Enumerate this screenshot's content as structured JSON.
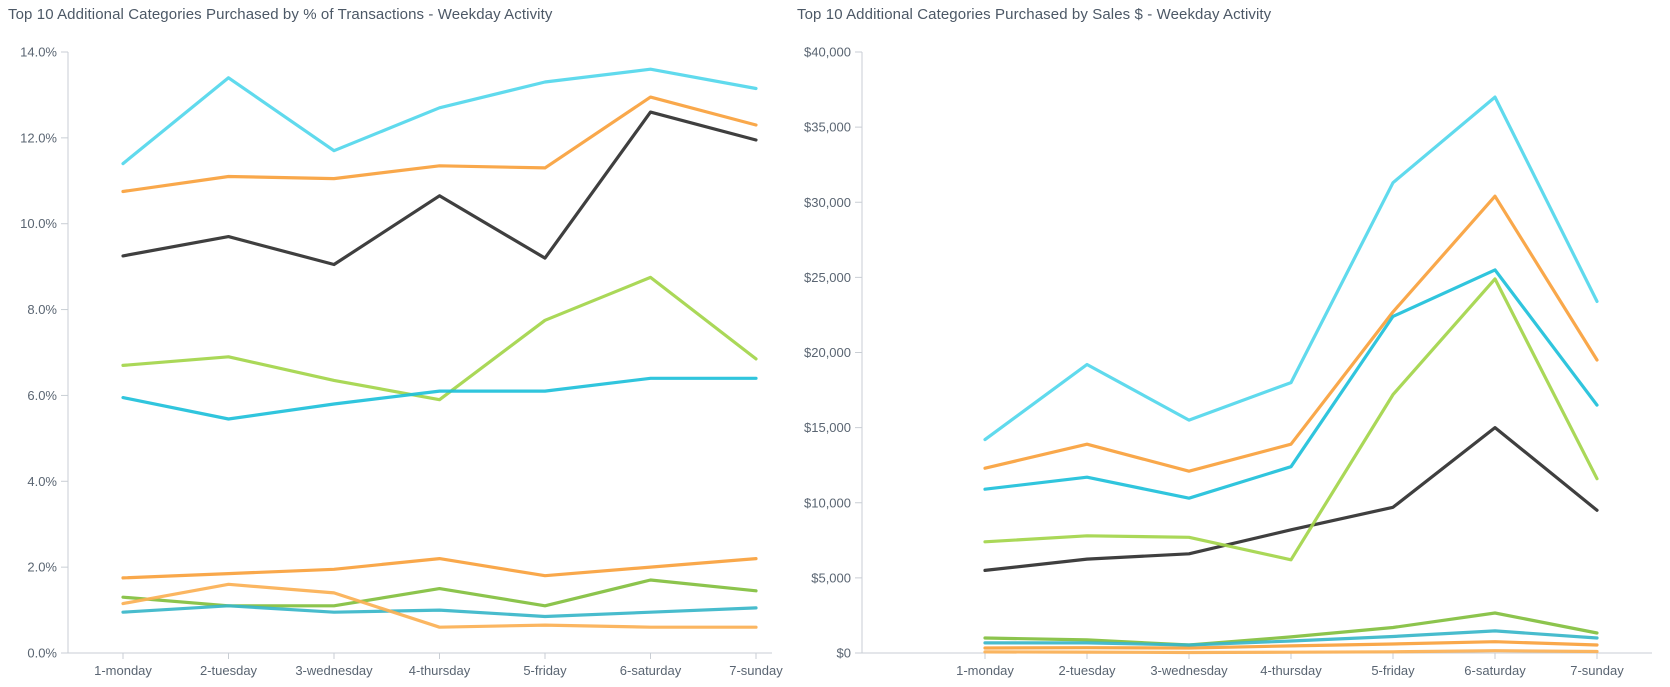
{
  "page": {
    "background_color": "#ffffff",
    "title_color": "#4c5866",
    "axis_color": "#c9ced4",
    "tick_label_color": "#5a6572"
  },
  "chart_data": [
    {
      "id": "transactions-by-weekday",
      "type": "line",
      "title": "Top 10 Additional Categories Purchased by % of Transactions - Weekday Activity",
      "xlabel": "",
      "ylabel": "",
      "grid": false,
      "legend_position": "none",
      "categories": [
        "1-monday",
        "2-tuesday",
        "3-wednesday",
        "4-thursday",
        "5-friday",
        "6-saturday",
        "7-sunday"
      ],
      "y_axis": {
        "min": 0,
        "max": 14,
        "step": 2,
        "format": "percent",
        "tick_labels": [
          "0.0%",
          "2.0%",
          "4.0%",
          "6.0%",
          "8.0%",
          "10.0%",
          "12.0%",
          "14.0%"
        ]
      },
      "series": [
        {
          "name": "line-1-light-cyan",
          "color": "#52d7ec",
          "values": [
            11.4,
            13.4,
            11.7,
            12.7,
            13.3,
            13.6,
            13.15
          ]
        },
        {
          "name": "line-2-orange",
          "color": "#f9a13c",
          "values": [
            10.75,
            11.1,
            11.05,
            11.35,
            11.3,
            12.95,
            12.3
          ]
        },
        {
          "name": "line-3-black",
          "color": "#2f2f2f",
          "values": [
            9.25,
            9.7,
            9.05,
            10.65,
            9.2,
            12.6,
            11.95
          ]
        },
        {
          "name": "line-4-light-green",
          "color": "#a3d54a",
          "values": [
            6.7,
            6.9,
            6.35,
            5.9,
            7.75,
            8.75,
            6.85
          ]
        },
        {
          "name": "line-5-teal",
          "color": "#1ec0da",
          "values": [
            5.95,
            5.45,
            5.8,
            6.1,
            6.1,
            6.4,
            6.4
          ]
        },
        {
          "name": "line-6-orange-2",
          "color": "#f9a13c",
          "values": [
            1.75,
            1.85,
            1.95,
            2.2,
            1.8,
            2.0,
            2.2
          ]
        },
        {
          "name": "line-7-green-2",
          "color": "#82bf3e",
          "values": [
            1.3,
            1.1,
            1.1,
            1.5,
            1.1,
            1.7,
            1.45
          ]
        },
        {
          "name": "line-8-teal-2",
          "color": "#38b6c9",
          "values": [
            0.95,
            1.1,
            0.95,
            1.0,
            0.85,
            0.95,
            1.05
          ]
        },
        {
          "name": "line-9-orange-3",
          "color": "#fbb054",
          "values": [
            1.15,
            1.6,
            1.4,
            0.6,
            0.65,
            0.6,
            0.6
          ]
        }
      ]
    },
    {
      "id": "sales-by-weekday",
      "type": "line",
      "title": "Top 10 Additional Categories Purchased by Sales $ - Weekday Activity",
      "xlabel": "",
      "ylabel": "",
      "grid": false,
      "legend_position": "none",
      "categories": [
        "1-monday",
        "2-tuesday",
        "3-wednesday",
        "4-thursday",
        "5-friday",
        "6-saturday",
        "7-sunday"
      ],
      "y_axis": {
        "min": 0,
        "max": 40000,
        "step": 5000,
        "format": "currency",
        "tick_labels": [
          "$0",
          "$5,000",
          "$10,000",
          "$15,000",
          "$20,000",
          "$25,000",
          "$30,000",
          "$35,000",
          "$40,000"
        ]
      },
      "series": [
        {
          "name": "line-1-light-cyan",
          "color": "#52d7ec",
          "values": [
            14200,
            19200,
            15500,
            18000,
            31300,
            37000,
            23400
          ]
        },
        {
          "name": "line-2-orange",
          "color": "#f9a13c",
          "values": [
            12300,
            13900,
            12100,
            13900,
            22700,
            30400,
            19500
          ]
        },
        {
          "name": "line-3-black",
          "color": "#2f2f2f",
          "values": [
            5500,
            6250,
            6600,
            8200,
            9700,
            15000,
            9500
          ]
        },
        {
          "name": "line-4-light-green",
          "color": "#a3d54a",
          "values": [
            7400,
            7800,
            7700,
            6200,
            17200,
            24900,
            11600
          ]
        },
        {
          "name": "line-5-teal",
          "color": "#1ec0da",
          "values": [
            10900,
            11700,
            10300,
            12400,
            22400,
            25500,
            16500
          ]
        },
        {
          "name": "line-6-orange-2",
          "color": "#f9a13c",
          "values": [
            330,
            350,
            330,
            470,
            600,
            750,
            530
          ]
        },
        {
          "name": "line-7-green-2",
          "color": "#82bf3e",
          "values": [
            1000,
            870,
            530,
            1070,
            1700,
            2660,
            1330
          ]
        },
        {
          "name": "line-8-teal-2",
          "color": "#38b6c9",
          "values": [
            670,
            670,
            530,
            800,
            1100,
            1470,
            1000
          ]
        },
        {
          "name": "line-9-orange-3",
          "color": "#fbb054",
          "values": [
            70,
            60,
            30,
            50,
            80,
            150,
            100
          ]
        }
      ]
    }
  ]
}
